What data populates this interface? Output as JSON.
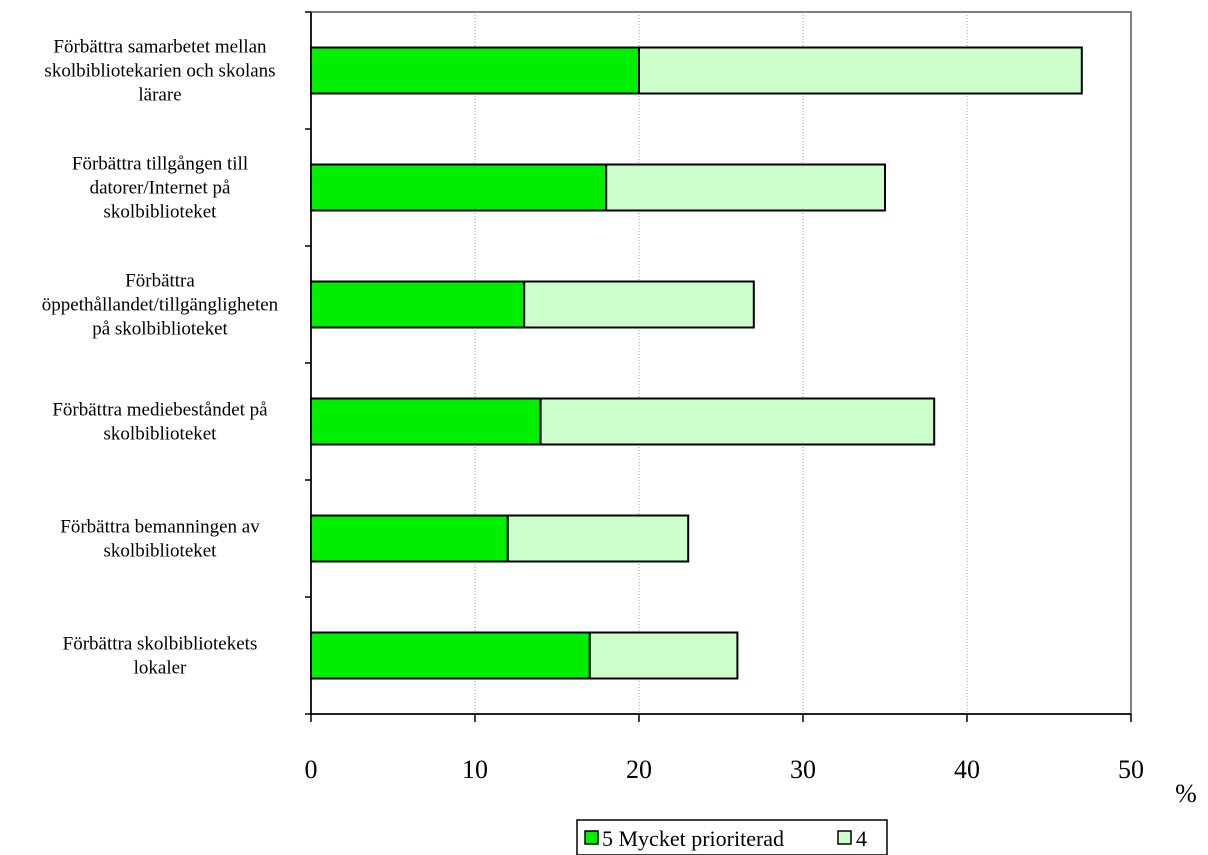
{
  "chart_data": {
    "type": "bar",
    "orientation": "horizontal",
    "stacked": true,
    "categories": [
      "Förbättra samarbetet mellan skolbibliotekarien och skolans lärare",
      "Förbättra tillgången till datorer/Internet på skolbiblioteket",
      "Förbättra öppethållandet/tillgängligheten på skolbiblioteket",
      "Förbättra mediebeståndet på skolbiblioteket",
      "Förbättra bemanningen av skolbiblioteket",
      "Förbättra skolbibliotekets lokaler"
    ],
    "category_lines": [
      [
        "Förbättra samarbetet mellan",
        "skolbibliotekarien och skolans",
        "lärare"
      ],
      [
        "Förbättra tillgången till",
        "datorer/Internet på",
        "skolbiblioteket"
      ],
      [
        "Förbättra",
        "öppethållandet/tillgängligheten",
        "på skolbiblioteket"
      ],
      [
        "Förbättra mediebeståndet på",
        "skolbiblioteket"
      ],
      [
        "Förbättra bemanningen av",
        "skolbiblioteket"
      ],
      [
        "Förbättra skolbibliotekets",
        "lokaler"
      ]
    ],
    "series": [
      {
        "name": "5 Mycket prioriterad",
        "color": "#00ee00",
        "values": [
          20,
          18,
          13,
          14,
          12,
          17
        ]
      },
      {
        "name": "4",
        "color": "#ccffcc",
        "values": [
          27,
          17,
          14,
          24,
          11,
          9
        ]
      }
    ],
    "xlim": [
      0,
      50
    ],
    "xticks": [
      "0",
      "10",
      "20",
      "30",
      "40",
      "50"
    ],
    "xlabel": "%",
    "grid": "vertical-dotted",
    "legend": "bottom-center"
  }
}
